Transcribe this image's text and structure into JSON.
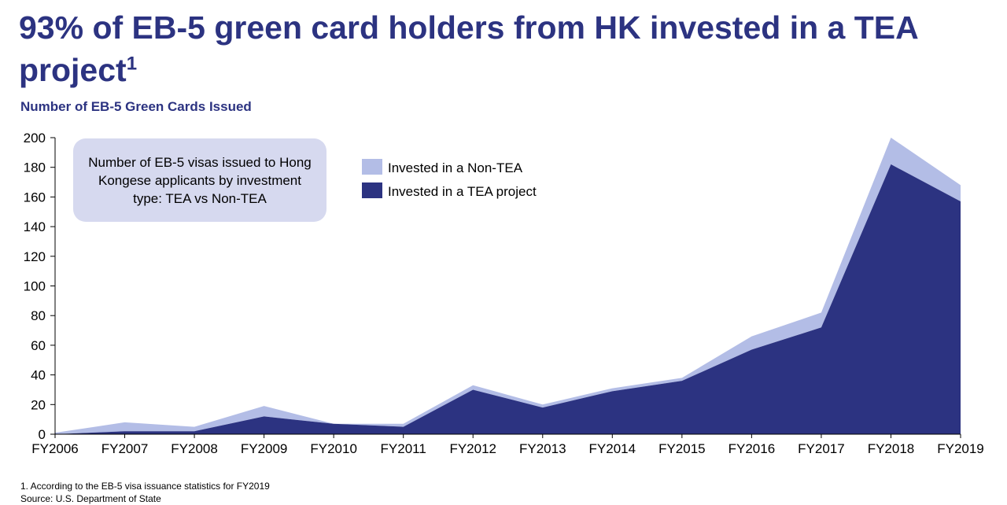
{
  "title": {
    "text": "93% of EB-5 green card holders from HK invested in a TEA project",
    "superscript": "1"
  },
  "subtitle": "Number of EB-5 Green Cards Issued",
  "note_box": "Number of EB-5 visas issued to Hong Kongese applicants by investment type: TEA vs Non-TEA",
  "footnotes": {
    "note": "1. According to the EB-5 visa issuance statistics for FY2019",
    "source": "Source: U.S. Department  of State"
  },
  "colors": {
    "non_tea": "#b3bde6",
    "tea": "#2c3381",
    "title": "#2c3381",
    "note_box": "#d6d9ef"
  },
  "chart_data": {
    "type": "area",
    "stacked": true,
    "categories": [
      "FY2006",
      "FY2007",
      "FY2008",
      "FY2009",
      "FY2010",
      "FY2011",
      "FY2012",
      "FY2013",
      "FY2014",
      "FY2015",
      "FY2016",
      "FY2017",
      "FY2018",
      "FY2019"
    ],
    "series": [
      {
        "name": "Invested in a TEA project",
        "color": "#2c3381",
        "values": [
          0,
          2,
          2,
          12,
          7,
          5,
          30,
          18,
          29,
          36,
          57,
          72,
          182,
          157
        ]
      },
      {
        "name": "Invested in a Non-TEA",
        "color": "#b3bde6",
        "values": [
          1,
          6,
          3,
          7,
          0,
          2,
          3,
          2,
          2,
          2,
          9,
          10,
          18,
          11
        ]
      }
    ],
    "y_ticks": [
      0,
      20,
      40,
      60,
      80,
      100,
      120,
      140,
      160,
      180,
      200
    ],
    "ylim": [
      0,
      200
    ],
    "legend": [
      "Invested in a Non-TEA",
      "Invested in a TEA project"
    ],
    "legend_position": "top-center",
    "grid": false
  }
}
